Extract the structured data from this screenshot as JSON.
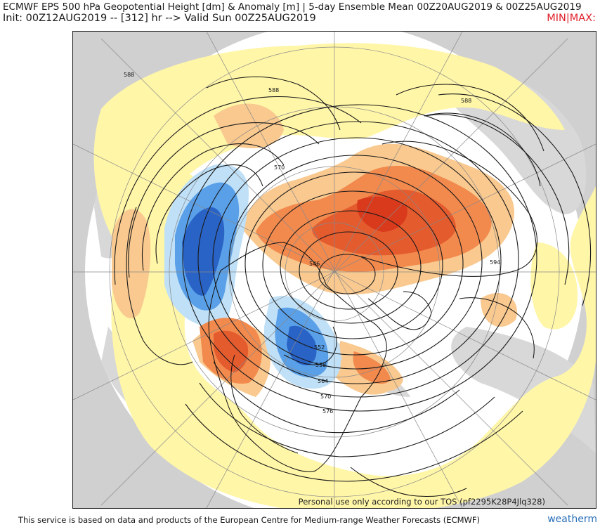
{
  "header": {
    "title_line1": "ECMWF EPS 500 hPa Geopotential Height [dm] & Anomaly [m] | 5-day Ensemble Mean 00Z20AUG2019 & 00Z25AUG2019",
    "title_line2": "Init: 00Z12AUG2019 -- [312] hr --> Valid Sun 00Z25AUG2019",
    "minmax": "MIN|MAX:"
  },
  "map": {
    "projection": "north-polar-stereographic",
    "contour_labels": [
      "588",
      "588",
      "570",
      "546",
      "594",
      "552",
      "558",
      "564",
      "570",
      "576"
    ],
    "colors": {
      "positive_strong": "#d93a1c",
      "positive_mid": "#f28a4e",
      "positive_weak": "#f9c98f",
      "positive_faint": "#fff6a8",
      "negative_strong": "#2a63c6",
      "negative_mid": "#5aa0e8",
      "negative_weak": "#bfe0f7",
      "outside_gray": "#d0d0d0"
    }
  },
  "watermark": "Personal use only according to our TOS (pf2295K28P4Jlq328)",
  "footer": {
    "credit": "This service is based on data and products of the European Centre for Medium-range Weather Forecasts (ECMWF)",
    "brand": "weatherm"
  }
}
